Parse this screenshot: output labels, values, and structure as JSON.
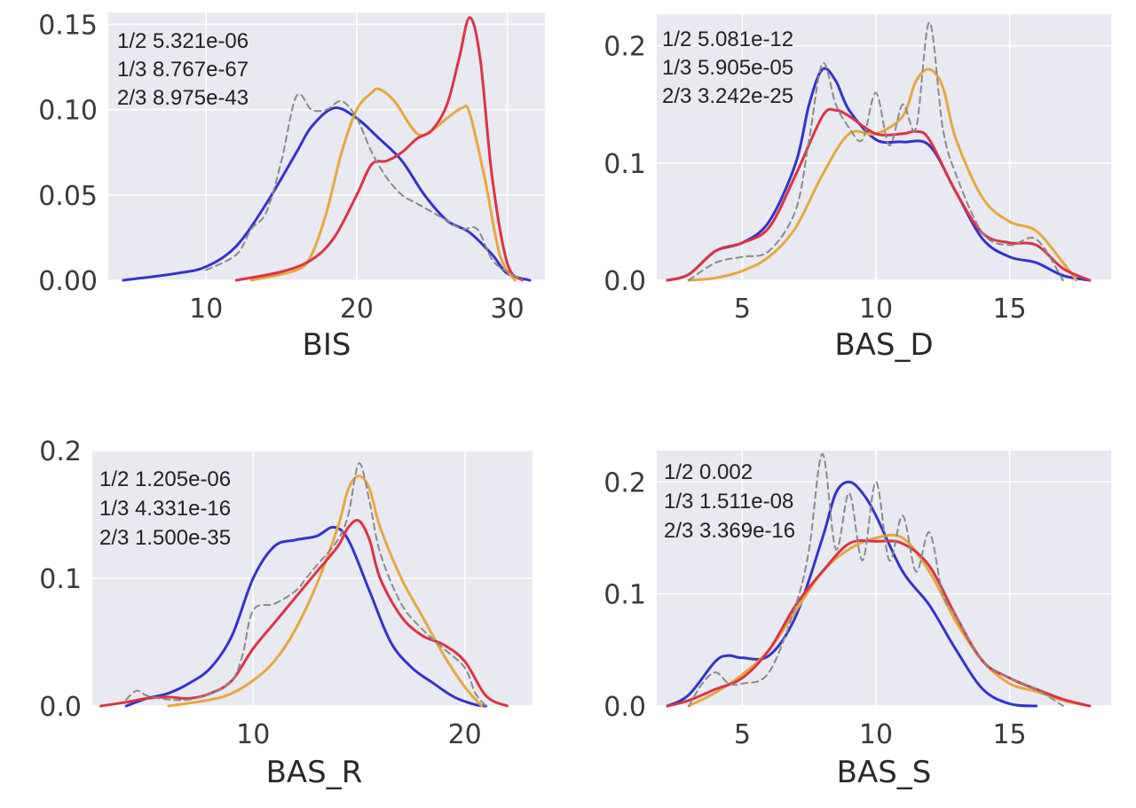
{
  "colors": {
    "background": "#e9e9f2",
    "grid": "#ffffff",
    "group1": "#3333cc",
    "group2": "#e8a83a",
    "group3": "#dd3344",
    "overall": "#8a8a8a"
  },
  "chart_data": [
    {
      "type": "line",
      "xlabel": "BIS",
      "xlim": [
        3.5,
        32.5
      ],
      "ylim": [
        0,
        0.157
      ],
      "xticks": [
        10,
        20,
        30
      ],
      "yticks": [
        0.0,
        0.05,
        0.1,
        0.15
      ],
      "ytick_labels": [
        "0.00",
        "0.05",
        "0.10",
        "0.15"
      ],
      "grid": true,
      "annotations": [
        "1/2 5.321e-06",
        "1/3 8.767e-67",
        "2/3 8.975e-43"
      ],
      "series": [
        {
          "style": "solid",
          "color": "#3333cc",
          "x": [
            4.5,
            8,
            10,
            12,
            14,
            16,
            17,
            18.5,
            20,
            21.5,
            23,
            24.5,
            26,
            27.5,
            29,
            30,
            31.5
          ],
          "y": [
            0,
            0.004,
            0.008,
            0.02,
            0.045,
            0.075,
            0.09,
            0.101,
            0.095,
            0.083,
            0.07,
            0.05,
            0.035,
            0.028,
            0.015,
            0.004,
            0
          ]
        },
        {
          "style": "solid",
          "color": "#e8a83a",
          "x": [
            13,
            16,
            17,
            18,
            19,
            20,
            21,
            21.5,
            22.5,
            24,
            25,
            26,
            27,
            27.5,
            28.5,
            29.5,
            30.5
          ],
          "y": [
            0,
            0.006,
            0.015,
            0.04,
            0.075,
            0.1,
            0.11,
            0.112,
            0.105,
            0.086,
            0.088,
            0.095,
            0.101,
            0.098,
            0.06,
            0.015,
            0
          ]
        },
        {
          "style": "solid",
          "color": "#dd3344",
          "x": [
            12,
            15,
            17,
            18.5,
            20,
            21,
            22,
            23,
            24,
            25,
            26,
            26.8,
            27.5,
            28.2,
            29,
            30,
            31
          ],
          "y": [
            0,
            0.005,
            0.012,
            0.025,
            0.05,
            0.068,
            0.07,
            0.075,
            0.083,
            0.088,
            0.103,
            0.13,
            0.154,
            0.13,
            0.06,
            0.01,
            0
          ]
        },
        {
          "style": "dashed",
          "color": "#8a8a8a",
          "x": [
            10,
            12,
            13,
            14,
            15,
            16,
            17,
            18,
            19,
            20,
            21,
            22,
            23,
            24,
            25,
            26,
            27,
            28,
            29,
            30,
            31
          ],
          "y": [
            0.006,
            0.015,
            0.03,
            0.04,
            0.07,
            0.108,
            0.1,
            0.1,
            0.105,
            0.095,
            0.075,
            0.06,
            0.05,
            0.045,
            0.04,
            0.035,
            0.03,
            0.03,
            0.012,
            0.005,
            0
          ]
        }
      ]
    },
    {
      "type": "line",
      "xlabel": "BAS_D",
      "xlim": [
        1.8,
        18.8
      ],
      "ylim": [
        0,
        0.227
      ],
      "xticks": [
        5,
        10,
        15
      ],
      "yticks": [
        0.0,
        0.1,
        0.2
      ],
      "ytick_labels": [
        "0.0",
        "0.1",
        "0.2"
      ],
      "grid": true,
      "annotations": [
        "1/2 5.081e-12",
        "1/3 5.905e-05",
        "2/3 3.242e-25"
      ],
      "series": [
        {
          "style": "solid",
          "color": "#3333cc",
          "x": [
            2.2,
            3,
            4,
            5,
            6,
            7,
            7.5,
            8,
            8.5,
            9,
            10,
            11,
            12,
            13,
            14,
            15,
            16,
            17,
            18
          ],
          "y": [
            0,
            0.005,
            0.025,
            0.032,
            0.05,
            0.1,
            0.15,
            0.18,
            0.17,
            0.145,
            0.12,
            0.118,
            0.115,
            0.075,
            0.035,
            0.02,
            0.015,
            0.004,
            0
          ]
        },
        {
          "style": "solid",
          "color": "#e8a83a",
          "x": [
            3,
            4,
            5,
            6,
            7,
            8,
            9,
            10,
            11,
            11.5,
            12,
            12.5,
            13,
            14,
            15,
            16,
            17,
            17.5
          ],
          "y": [
            0,
            0.002,
            0.008,
            0.02,
            0.045,
            0.09,
            0.125,
            0.125,
            0.14,
            0.17,
            0.18,
            0.165,
            0.12,
            0.07,
            0.05,
            0.042,
            0.015,
            0
          ]
        },
        {
          "style": "solid",
          "color": "#dd3344",
          "x": [
            2.2,
            3,
            4,
            5,
            6,
            7,
            8,
            8.5,
            9,
            10,
            11,
            11.5,
            12,
            13,
            14,
            15,
            16,
            17,
            18
          ],
          "y": [
            0,
            0.005,
            0.025,
            0.032,
            0.045,
            0.09,
            0.14,
            0.145,
            0.14,
            0.125,
            0.125,
            0.127,
            0.12,
            0.075,
            0.04,
            0.032,
            0.03,
            0.01,
            0
          ]
        },
        {
          "style": "dashed",
          "color": "#8a8a8a",
          "x": [
            3,
            4,
            5,
            6,
            7,
            7.5,
            8,
            8.5,
            9,
            9.5,
            10,
            10.5,
            11,
            11.5,
            12,
            12.5,
            13,
            14,
            15,
            16,
            17
          ],
          "y": [
            0,
            0.015,
            0.02,
            0.025,
            0.06,
            0.12,
            0.185,
            0.15,
            0.13,
            0.12,
            0.16,
            0.115,
            0.15,
            0.13,
            0.22,
            0.13,
            0.09,
            0.04,
            0.03,
            0.035,
            0
          ]
        }
      ]
    },
    {
      "type": "line",
      "xlabel": "BAS_R",
      "xlim": [
        2.4,
        23.2
      ],
      "ylim": [
        0,
        0.2
      ],
      "xticks": [
        10,
        20
      ],
      "yticks": [
        0.0,
        0.1,
        0.2
      ],
      "ytick_labels": [
        "0.0",
        "0.1",
        "0.2"
      ],
      "grid": true,
      "annotations": [
        "1/2 1.205e-06",
        "1/3 4.331e-16",
        "2/3 1.500e-35"
      ],
      "series": [
        {
          "style": "solid",
          "color": "#3333cc",
          "x": [
            4,
            5,
            6,
            7,
            8,
            9,
            10,
            11,
            12,
            13,
            13.8,
            14.5,
            15.5,
            16.5,
            17.5,
            18.5,
            19.5,
            20.5,
            21
          ],
          "y": [
            0,
            0.006,
            0.01,
            0.018,
            0.03,
            0.055,
            0.1,
            0.125,
            0.13,
            0.133,
            0.14,
            0.13,
            0.09,
            0.05,
            0.03,
            0.018,
            0.007,
            0.001,
            0
          ]
        },
        {
          "style": "solid",
          "color": "#e8a83a",
          "x": [
            6,
            8,
            9,
            10,
            11,
            12,
            13,
            14,
            14.5,
            15,
            15.5,
            16,
            17,
            18,
            19,
            20,
            20.8
          ],
          "y": [
            0,
            0.005,
            0.01,
            0.02,
            0.035,
            0.06,
            0.095,
            0.14,
            0.17,
            0.18,
            0.17,
            0.14,
            0.1,
            0.07,
            0.04,
            0.015,
            0
          ]
        },
        {
          "style": "solid",
          "color": "#dd3344",
          "x": [
            2.8,
            4,
            5,
            6,
            7,
            8,
            9,
            10,
            11,
            12,
            13,
            14,
            14.5,
            15,
            15.5,
            16,
            17,
            18,
            19,
            20,
            21,
            22
          ],
          "y": [
            0,
            0.003,
            0.006,
            0.007,
            0.006,
            0.01,
            0.02,
            0.045,
            0.065,
            0.085,
            0.105,
            0.125,
            0.14,
            0.145,
            0.13,
            0.1,
            0.07,
            0.055,
            0.048,
            0.035,
            0.008,
            0
          ]
        },
        {
          "style": "dashed",
          "color": "#8a8a8a",
          "x": [
            4,
            4.5,
            5,
            6,
            7,
            8,
            9,
            9.5,
            10,
            11,
            12,
            12.5,
            13,
            14,
            14.5,
            15,
            15.5,
            16,
            17,
            18,
            19,
            20,
            20.5,
            21
          ],
          "y": [
            0.005,
            0.012,
            0.008,
            0.005,
            0.005,
            0.01,
            0.02,
            0.04,
            0.075,
            0.08,
            0.09,
            0.1,
            0.11,
            0.13,
            0.15,
            0.19,
            0.16,
            0.12,
            0.08,
            0.06,
            0.045,
            0.03,
            0.01,
            0
          ]
        }
      ]
    },
    {
      "type": "line",
      "xlabel": "BAS_S",
      "xlim": [
        1.8,
        18.8
      ],
      "ylim": [
        0,
        0.228
      ],
      "xticks": [
        5,
        10,
        15
      ],
      "yticks": [
        0.0,
        0.1,
        0.2
      ],
      "ytick_labels": [
        "0.0",
        "0.1",
        "0.2"
      ],
      "grid": true,
      "annotations": [
        "1/2 0.002",
        "1/3 1.511e-08",
        "2/3 3.369e-16"
      ],
      "series": [
        {
          "style": "solid",
          "color": "#3333cc",
          "x": [
            2.2,
            3,
            4,
            4.5,
            5,
            6,
            7,
            8,
            8.5,
            9,
            9.5,
            10,
            11,
            12,
            13,
            14,
            15,
            16
          ],
          "y": [
            0,
            0.01,
            0.04,
            0.045,
            0.043,
            0.045,
            0.08,
            0.15,
            0.19,
            0.2,
            0.19,
            0.17,
            0.12,
            0.09,
            0.05,
            0.015,
            0.002,
            0
          ]
        },
        {
          "style": "solid",
          "color": "#e8a83a",
          "x": [
            3,
            4,
            5,
            6,
            7,
            8,
            9,
            10,
            11,
            12,
            13,
            14,
            15,
            16,
            17,
            18
          ],
          "y": [
            0,
            0.012,
            0.028,
            0.05,
            0.085,
            0.12,
            0.14,
            0.15,
            0.15,
            0.12,
            0.075,
            0.04,
            0.02,
            0.013,
            0.005,
            0
          ]
        },
        {
          "style": "solid",
          "color": "#dd3344",
          "x": [
            2.2,
            3,
            4,
            5,
            6,
            7,
            8,
            9,
            10,
            11,
            12,
            13,
            14,
            15,
            16,
            17,
            18
          ],
          "y": [
            0,
            0.005,
            0.015,
            0.025,
            0.05,
            0.09,
            0.12,
            0.145,
            0.147,
            0.145,
            0.125,
            0.08,
            0.04,
            0.025,
            0.015,
            0.006,
            0
          ]
        },
        {
          "style": "dashed",
          "color": "#8a8a8a",
          "x": [
            3,
            3.5,
            4,
            4.5,
            5,
            6,
            7,
            7.5,
            8,
            8.5,
            9,
            9.5,
            10,
            10.5,
            11,
            11.5,
            12,
            12.5,
            13,
            14,
            15,
            16,
            17
          ],
          "y": [
            0,
            0.02,
            0.03,
            0.02,
            0.02,
            0.03,
            0.09,
            0.14,
            0.225,
            0.14,
            0.19,
            0.13,
            0.2,
            0.13,
            0.17,
            0.12,
            0.155,
            0.1,
            0.08,
            0.04,
            0.025,
            0.015,
            0
          ]
        }
      ]
    }
  ]
}
